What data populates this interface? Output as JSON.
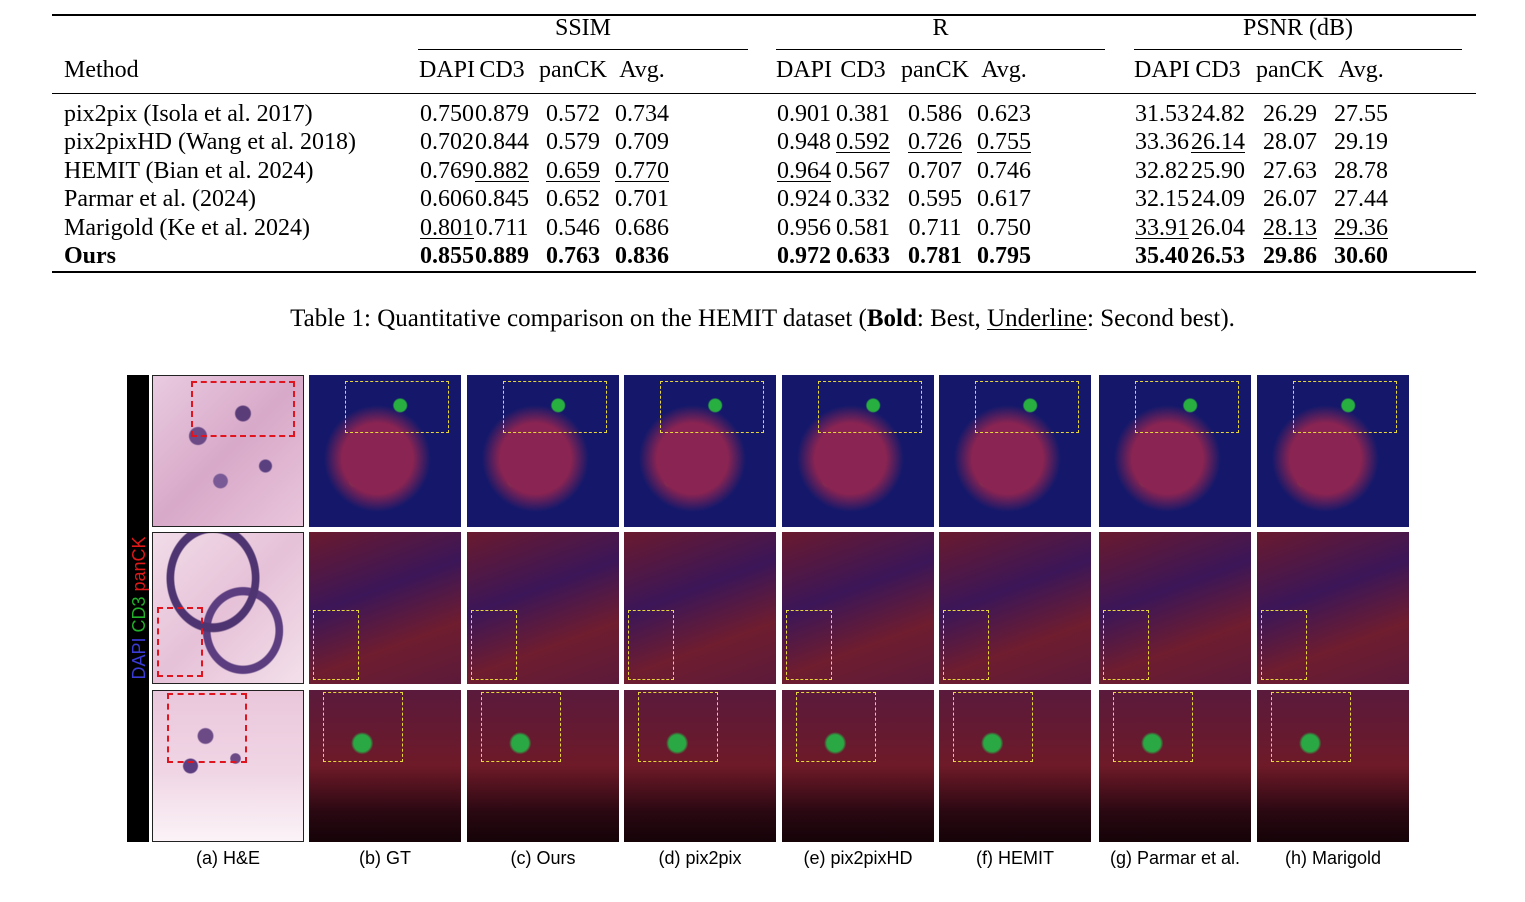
{
  "table": {
    "method_header": "Method",
    "groups": [
      "SSIM",
      "R",
      "PSNR (dB)"
    ],
    "columns": [
      "DAPI",
      "CD3",
      "panCK",
      "Avg.",
      "DAPI",
      "CD3",
      "panCK",
      "Avg.",
      "DAPI",
      "CD3",
      "panCK",
      "Avg."
    ],
    "rows": [
      {
        "method": "pix2pix (Isola et al. 2017)",
        "values": [
          "0.750",
          "0.879",
          "0.572",
          "0.734",
          "0.901",
          "0.381",
          "0.586",
          "0.623",
          "31.53",
          "24.82",
          "26.29",
          "27.55"
        ],
        "underline": [],
        "bold": false
      },
      {
        "method": "pix2pixHD (Wang et al. 2018)",
        "values": [
          "0.702",
          "0.844",
          "0.579",
          "0.709",
          "0.948",
          "0.592",
          "0.726",
          "0.755",
          "33.36",
          "26.14",
          "28.07",
          "29.19"
        ],
        "underline": [
          5,
          6,
          7,
          9
        ],
        "bold": false
      },
      {
        "method": "HEMIT (Bian et al. 2024)",
        "values": [
          "0.769",
          "0.882",
          "0.659",
          "0.770",
          "0.964",
          "0.567",
          "0.707",
          "0.746",
          "32.82",
          "25.90",
          "27.63",
          "28.78"
        ],
        "underline": [
          1,
          2,
          3,
          4
        ],
        "bold": false
      },
      {
        "method": "Parmar et al. (2024)",
        "values": [
          "0.606",
          "0.845",
          "0.652",
          "0.701",
          "0.924",
          "0.332",
          "0.595",
          "0.617",
          "32.15",
          "24.09",
          "26.07",
          "27.44"
        ],
        "underline": [],
        "bold": false
      },
      {
        "method": "Marigold (Ke et al. 2024)",
        "values": [
          "0.801",
          "0.711",
          "0.546",
          "0.686",
          "0.956",
          "0.581",
          "0.711",
          "0.750",
          "33.91",
          "26.04",
          "28.13",
          "29.36"
        ],
        "underline": [
          0,
          8,
          10,
          11
        ],
        "bold": false
      },
      {
        "method": "Ours",
        "values": [
          "0.855",
          "0.889",
          "0.763",
          "0.836",
          "0.972",
          "0.633",
          "0.781",
          "0.795",
          "35.40",
          "26.53",
          "29.86",
          "30.60"
        ],
        "underline": [],
        "bold": true
      }
    ]
  },
  "caption": {
    "prefix": "Table 1: Quantitative comparison on the HEMIT dataset (",
    "bold": "Bold",
    "mid": ": Best, ",
    "underline": "Underline",
    "suffix": ": Second best)."
  },
  "figure": {
    "side_label_parts": [
      {
        "text": "DAPI",
        "color": "#3b3bd6"
      },
      {
        "text": " CD3",
        "color": "#22b02a"
      },
      {
        "text": " panCK",
        "color": "#e01818"
      }
    ],
    "labels": [
      "(a) H&E",
      "(b) GT",
      "(c) Ours",
      "(d) pix2pix",
      "(e) pix2pixHD",
      "(f) HEMIT",
      "(g) Parmar et al.",
      "(h) Marigold"
    ]
  }
}
